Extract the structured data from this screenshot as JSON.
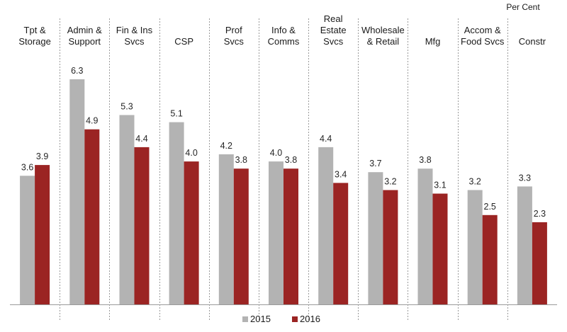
{
  "chart_data": {
    "type": "bar",
    "unit_label": "Per Cent",
    "categories": [
      [
        "Tpt &",
        "Storage"
      ],
      [
        "Admin &",
        "Support"
      ],
      [
        "Fin & Ins",
        "Svcs"
      ],
      [
        "CSP"
      ],
      [
        "Prof",
        "Svcs"
      ],
      [
        "Info &",
        "Comms"
      ],
      [
        "Real",
        "Estate",
        "Svcs"
      ],
      [
        "Wholesale",
        "& Retail"
      ],
      [
        "Mfg"
      ],
      [
        "Accom &",
        "Food Svcs"
      ],
      [
        "Constr"
      ]
    ],
    "series": [
      {
        "name": "2015",
        "color": "#b3b3b3",
        "values": [
          3.6,
          6.3,
          5.3,
          5.1,
          4.2,
          4.0,
          4.4,
          3.7,
          3.8,
          3.2,
          3.3
        ]
      },
      {
        "name": "2016",
        "color": "#9b2423",
        "values": [
          3.9,
          4.9,
          4.4,
          4.0,
          3.8,
          3.8,
          3.4,
          3.2,
          3.1,
          2.5,
          2.3
        ]
      }
    ],
    "ylim": [
      0,
      7
    ],
    "legend_position": "bottom-center",
    "grid": false
  }
}
